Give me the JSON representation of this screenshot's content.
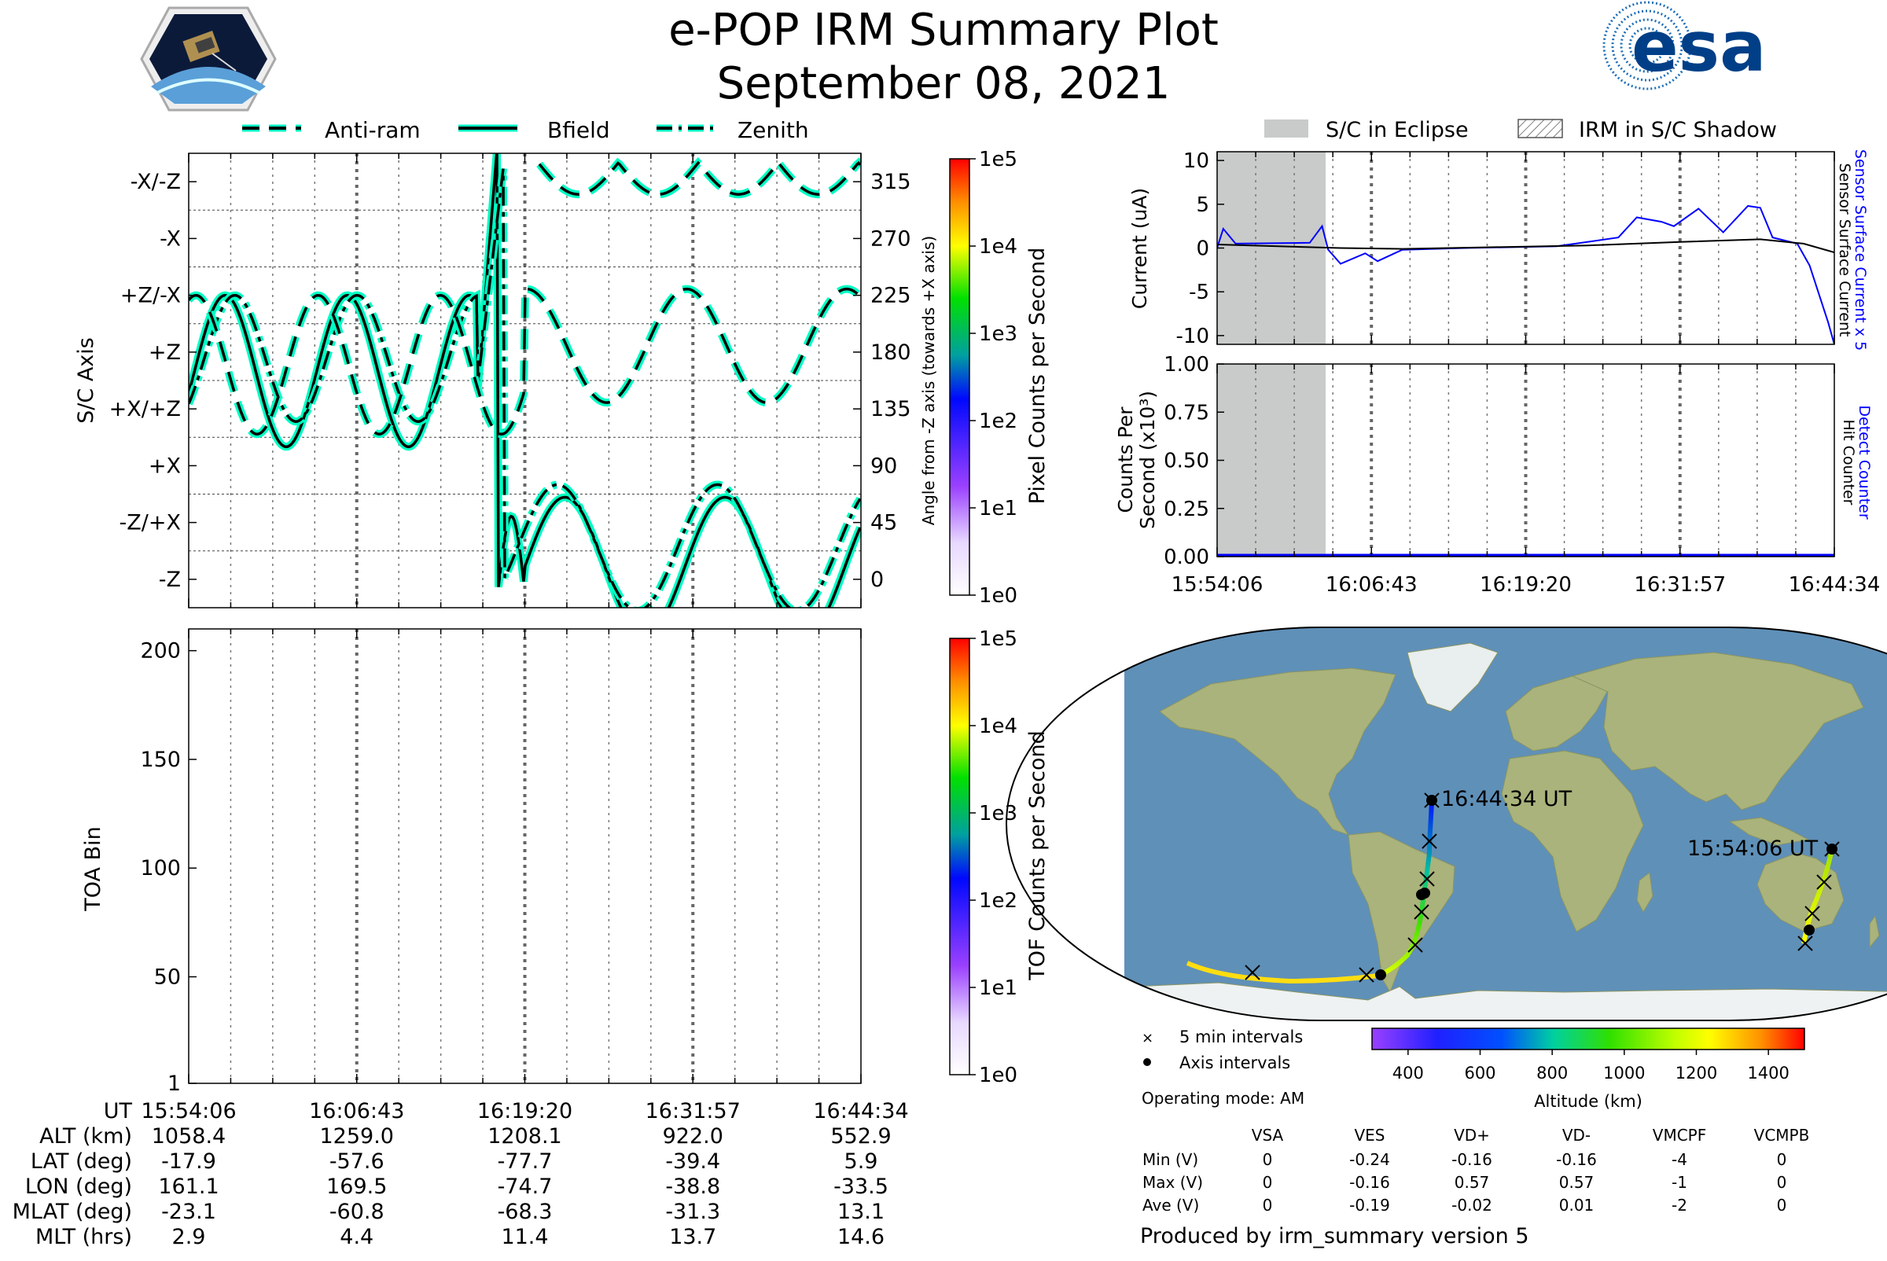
{
  "header": {
    "title": "e-POP IRM Summary Plot",
    "date": "September 08, 2021",
    "left_logo": "cassiope-mission-logo",
    "right_logo": "esa"
  },
  "footer": {
    "produced_by": "Produced by irm_summary version 5"
  },
  "colors": {
    "axis_trace": "#00ffc4",
    "axis_outline": "#000000",
    "sensor_current": "#0000ff",
    "sensor_surface_current": "#000000",
    "eclipse": "#c8cbca",
    "map_ocean": "#5f90b8"
  },
  "chart_data": [
    {
      "id": "sc-axis",
      "type": "line",
      "ylabel": "S/C Axis",
      "ylabel_right": "Angle from -Z axis (towards +X axis)",
      "ytick_labels": [
        "-Z",
        "-Z/+X",
        "+X",
        "+X/+Z",
        "+Z",
        "+Z/-X",
        "-X",
        "-X/-Z"
      ],
      "right_ticks": [
        0,
        45,
        90,
        135,
        180,
        225,
        270,
        315
      ],
      "ylim": [
        -22.5,
        337.5
      ],
      "xlim": [
        "15:54:06",
        "16:44:34"
      ],
      "legend_position": "top",
      "legend": [
        "Anti-ram",
        "Bfield",
        "Zenith"
      ],
      "series": [
        {
          "name": "Anti-ram",
          "style": "dashed"
        },
        {
          "name": "Bfield",
          "style": "solid"
        },
        {
          "name": "Zenith",
          "style": "dashdot"
        }
      ]
    },
    {
      "id": "pixel-colorbar",
      "type": "heatmap",
      "label": "Pixel Counts per Second",
      "scale": "log",
      "ticks": [
        "1e0",
        "1e1",
        "1e2",
        "1e3",
        "1e4",
        "1e5"
      ]
    },
    {
      "id": "toa",
      "type": "heatmap",
      "ylabel": "TOA Bin",
      "ylim": [
        1,
        210
      ],
      "yticks": [
        1,
        50,
        100,
        150,
        200
      ],
      "values": []
    },
    {
      "id": "tof-colorbar",
      "type": "heatmap",
      "label": "TOF Counts per Second",
      "scale": "log",
      "ticks": [
        "1e0",
        "1e1",
        "1e2",
        "1e3",
        "1e4",
        "1e5"
      ]
    },
    {
      "id": "current",
      "type": "line",
      "ylabel": "Current (uA)",
      "ylim": [
        -11,
        11
      ],
      "yticks": [
        -10,
        -5,
        0,
        5,
        10
      ],
      "right_labels": [
        "Sensor Surface Current x 5",
        "Sensor Surface Current"
      ],
      "eclipse_shading": [
        "15:54:06",
        "16:03:30"
      ]
    },
    {
      "id": "counts",
      "type": "line",
      "ylabel": "Counts Per Second (x10³)",
      "ylim": [
        0,
        1
      ],
      "yticks": [
        "0.00",
        "0.25",
        "0.50",
        "0.75",
        "1.00"
      ],
      "right_labels": [
        "Detect Counter",
        "Hit Counter"
      ],
      "values": [
        0,
        0
      ]
    },
    {
      "id": "orbit-map",
      "type": "scatter",
      "start_label": "15:54:06 UT",
      "end_label": "16:44:34 UT",
      "legend": [
        "5 min intervals",
        "Axis intervals"
      ],
      "operating_mode": "Operating mode: AM",
      "colorbar_label": "Altitude (km)",
      "colorbar_ticks": [
        400,
        600,
        800,
        1000,
        1200,
        1400
      ],
      "colorbar_range": [
        300,
        1500
      ]
    }
  ],
  "legends": {
    "axis": [
      "Anti-ram",
      "Bfield",
      "Zenith"
    ],
    "current": [
      "S/C in Eclipse",
      "IRM in S/C Shadow"
    ]
  },
  "time_axis": {
    "ut_label": "UT",
    "times": [
      "15:54:06",
      "16:06:43",
      "16:19:20",
      "16:31:57",
      "16:44:34"
    ],
    "rows": [
      {
        "label": "ALT (km)",
        "values": [
          "1058.4",
          "1259.0",
          "1208.1",
          "922.0",
          "552.9"
        ]
      },
      {
        "label": "LAT (deg)",
        "values": [
          "-17.9",
          "-57.6",
          "-77.7",
          "-39.4",
          "5.9"
        ]
      },
      {
        "label": "LON (deg)",
        "values": [
          "161.1",
          "169.5",
          "-74.7",
          "-38.8",
          "-33.5"
        ]
      },
      {
        "label": "MLAT (deg)",
        "values": [
          "-23.1",
          "-60.8",
          "-68.3",
          "-31.3",
          "13.1"
        ]
      },
      {
        "label": "MLT (hrs)",
        "values": [
          "2.9",
          "4.4",
          "11.4",
          "13.7",
          "14.6"
        ]
      }
    ]
  },
  "voltage_table": {
    "columns": [
      "VSA",
      "VES",
      "VD+",
      "VD-",
      "VMCPF",
      "VCMPB"
    ],
    "rows": [
      {
        "label": "Min (V)",
        "values": [
          "0",
          "-0.24",
          "-0.16",
          "-0.16",
          "-4",
          "0"
        ]
      },
      {
        "label": "Max (V)",
        "values": [
          "0",
          "-0.16",
          "0.57",
          "0.57",
          "-1",
          "0"
        ]
      },
      {
        "label": "Ave (V)",
        "values": [
          "0",
          "-0.19",
          "-0.02",
          "0.01",
          "-2",
          "0"
        ]
      }
    ]
  }
}
